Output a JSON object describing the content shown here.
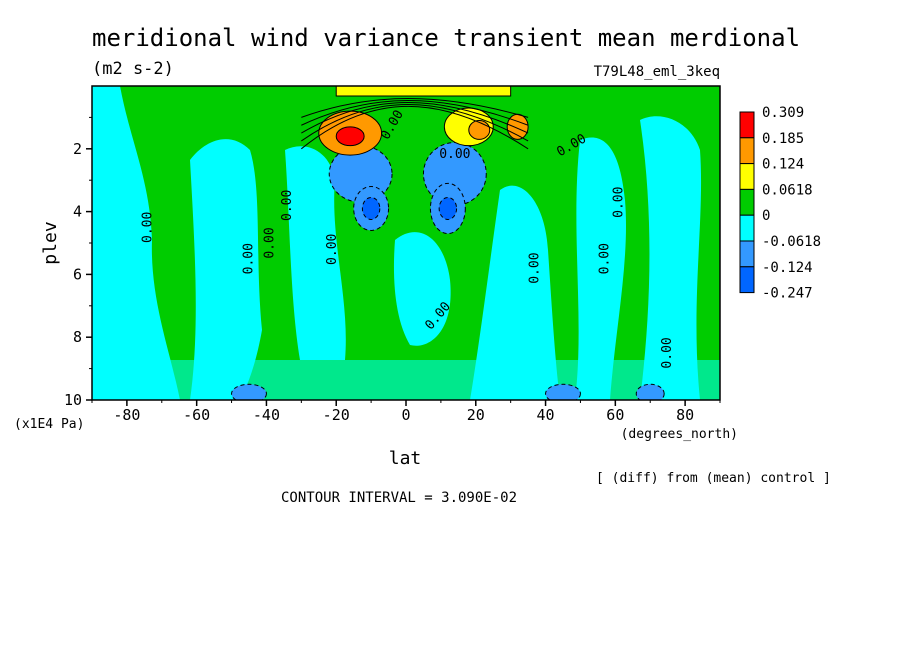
{
  "chart_data": {
    "type": "heatmap",
    "title": "meridional wind variance transient mean merdional",
    "units": "(m2 s-2)",
    "run_label": "T79L48_eml_3keq",
    "xlabel": "lat",
    "x_units": "(degrees_north)",
    "ylabel": "plev",
    "y_units": "(x1E4 Pa)",
    "xlim": [
      -90,
      90
    ],
    "ylim": [
      10,
      0
    ],
    "x_ticks": [
      -80,
      -60,
      -40,
      -20,
      0,
      20,
      40,
      60,
      80
    ],
    "x_tick_labels": [
      "-80",
      "-60",
      "-40",
      "-20",
      "0",
      "20",
      "40",
      "60",
      "80"
    ],
    "y_ticks": [
      2,
      4,
      6,
      8,
      10
    ],
    "y_tick_labels": [
      "2",
      "4",
      "6",
      "8",
      "10"
    ],
    "contour_interval": "CONTOUR INTERVAL = 3.090E-02",
    "note": "[ (diff) from (mean) control ]",
    "colorbar": {
      "levels": [
        "0.309",
        "0.185",
        "0.124",
        "0.0618",
        "0",
        "-0.0618",
        "-0.124",
        "-0.247"
      ],
      "colors": [
        "#ff0000",
        "#ff9900",
        "#ffff00",
        "#00cc00",
        "#00ffff",
        "#3399ff",
        "#0066ff"
      ]
    },
    "contour_labels": [
      {
        "text": "0.00",
        "lat": -73,
        "p": 4.5,
        "rot": -90
      },
      {
        "text": "0.00",
        "lat": -44,
        "p": 5.5,
        "rot": -90
      },
      {
        "text": "0.00",
        "lat": -38,
        "p": 5.0,
        "rot": -90
      },
      {
        "text": "0.00",
        "lat": -33,
        "p": 3.8,
        "rot": -90
      },
      {
        "text": "0.00",
        "lat": -20,
        "p": 5.2,
        "rot": -90
      },
      {
        "text": "0.00",
        "lat": 10,
        "p": 7.4,
        "rot": -50
      },
      {
        "text": "0.00",
        "lat": 14,
        "p": 2.3,
        "rot": 0
      },
      {
        "text": "0.00",
        "lat": 38,
        "p": 5.8,
        "rot": -90
      },
      {
        "text": "0.00",
        "lat": 48,
        "p": 2.0,
        "rot": -30
      },
      {
        "text": "0.00",
        "lat": 58,
        "p": 5.5,
        "rot": -90
      },
      {
        "text": "0.00",
        "lat": 62,
        "p": 3.7,
        "rot": -90
      },
      {
        "text": "0.00",
        "lat": 76,
        "p": 8.5,
        "rot": -90
      },
      {
        "text": "0.00",
        "lat": -3,
        "p": 1.3,
        "rot": -60
      }
    ],
    "anomaly_regions": [
      {
        "name": "neg-high-nh",
        "lat": -13,
        "p": 2.8,
        "rlat": 9,
        "rp": 0.9,
        "class": "-0.0618"
      },
      {
        "name": "neg-mid-sh",
        "lat": -10,
        "p": 3.9,
        "rlat": 5,
        "rp": 0.7,
        "class": "-0.124"
      },
      {
        "name": "neg-core-sh",
        "lat": -10,
        "p": 3.9,
        "rlat": 2.5,
        "rp": 0.35,
        "class": "-0.247"
      },
      {
        "name": "neg-high-nh2",
        "lat": 14,
        "p": 2.8,
        "rlat": 9,
        "rp": 1.0,
        "class": "-0.0618"
      },
      {
        "name": "neg-mid-nh",
        "lat": 12,
        "p": 3.9,
        "rlat": 5,
        "rp": 0.8,
        "class": "-0.124"
      },
      {
        "name": "neg-core-nh",
        "lat": 12,
        "p": 3.9,
        "rlat": 2.5,
        "rp": 0.35,
        "class": "-0.247"
      },
      {
        "name": "pos-jet-sh",
        "lat": -16,
        "p": 1.5,
        "rlat": 9,
        "rp": 0.7,
        "class": "0.124"
      },
      {
        "name": "pos-core-sh",
        "lat": -16,
        "p": 1.6,
        "rlat": 4,
        "rp": 0.3,
        "class": "0.309"
      },
      {
        "name": "pos-jet-nh",
        "lat": 18,
        "p": 1.3,
        "rlat": 7,
        "rp": 0.6,
        "class": "0.0618"
      },
      {
        "name": "pos-core-nh",
        "lat": 21,
        "p": 1.4,
        "rlat": 3,
        "rp": 0.3,
        "class": "0.124"
      },
      {
        "name": "pos-ne-nh",
        "lat": 32,
        "p": 1.3,
        "rlat": 3,
        "rp": 0.4,
        "class": "0.124"
      },
      {
        "name": "neg-surf-sh",
        "lat": -45,
        "p": 9.8,
        "rlat": 5,
        "rp": 0.3,
        "class": "-0.124"
      },
      {
        "name": "neg-surf-nh",
        "lat": 45,
        "p": 9.8,
        "rlat": 5,
        "rp": 0.3,
        "class": "-0.124"
      },
      {
        "name": "neg-surf-nh2",
        "lat": 70,
        "p": 9.8,
        "rlat": 4,
        "rp": 0.3,
        "class": "-0.124"
      }
    ]
  }
}
